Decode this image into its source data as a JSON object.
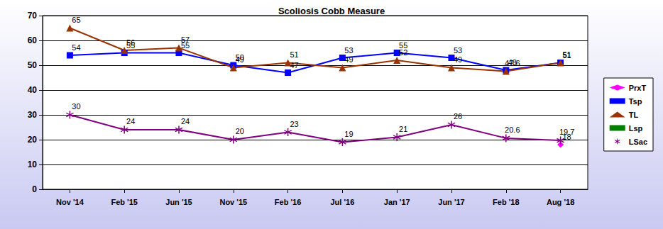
{
  "chart_data": {
    "type": "line",
    "title": "Scoliosis Cobb Measure",
    "categories": [
      "Nov '14",
      "Feb '15",
      "Jun '15",
      "Nov '15",
      "Feb '16",
      "Jul '16",
      "Jan '17",
      "Jun '17",
      "Feb '18",
      "Aug '18"
    ],
    "series": [
      {
        "name": "PrxT",
        "color": "#ff00ff",
        "marker": "diamond",
        "values": [
          null,
          null,
          null,
          null,
          null,
          null,
          null,
          null,
          null,
          18
        ]
      },
      {
        "name": "Tsp",
        "color": "#0000ff",
        "marker": "square",
        "values": [
          54,
          55,
          55,
          50,
          47,
          53,
          55,
          53,
          48,
          51
        ]
      },
      {
        "name": "TL",
        "color": "#993300",
        "marker": "triangle",
        "values": [
          65,
          56,
          57,
          49,
          51,
          49,
          52,
          49,
          47.6,
          51
        ]
      },
      {
        "name": "Lsp",
        "color": "#008000",
        "marker": "square",
        "values": [
          null,
          null,
          null,
          null,
          null,
          null,
          null,
          null,
          null,
          null
        ]
      },
      {
        "name": "LSac",
        "color": "#800080",
        "marker": "asterisk",
        "values": [
          30,
          24,
          24,
          20,
          23,
          19,
          21,
          26,
          20.6,
          19.7
        ]
      }
    ],
    "ylim": [
      0,
      70
    ],
    "yticks": [
      0,
      10,
      20,
      30,
      40,
      50,
      60,
      70
    ],
    "grid": true,
    "legend": "right",
    "data_labels": true
  }
}
